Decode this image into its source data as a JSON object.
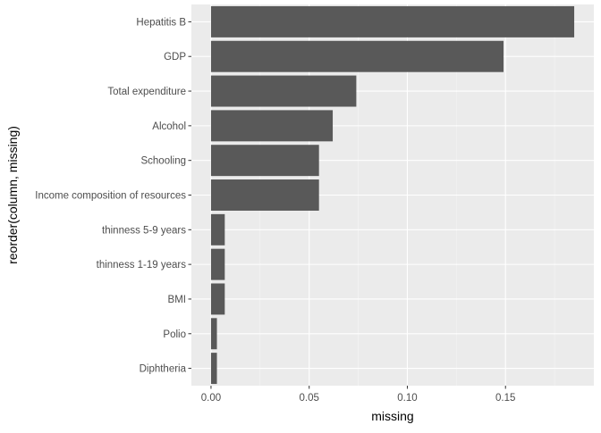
{
  "chart_data": {
    "type": "bar",
    "orientation": "horizontal",
    "categories": [
      "Hepatitis B",
      "GDP",
      "Total expenditure",
      "Alcohol",
      "Schooling",
      "Income composition of resources",
      "thinness 5-9 years",
      "thinness  1-19 years",
      "BMI",
      "Polio",
      "Diphtheria"
    ],
    "values": [
      0.185,
      0.149,
      0.074,
      0.062,
      0.055,
      0.055,
      0.007,
      0.007,
      0.007,
      0.003,
      0.003
    ],
    "xlabel": "missing",
    "ylabel": "reorder(column, missing)",
    "xlim": [
      -0.01,
      0.195
    ],
    "xticks": [
      0.0,
      0.05,
      0.1,
      0.15
    ],
    "xtick_labels": [
      "0.00",
      "0.05",
      "0.10",
      "0.15"
    ],
    "grid": true,
    "legend": "none",
    "colors": {
      "bar": "#595959",
      "panel": "#ebebeb",
      "grid_major": "#ffffff",
      "grid_minor": "#f5f5f5"
    }
  }
}
